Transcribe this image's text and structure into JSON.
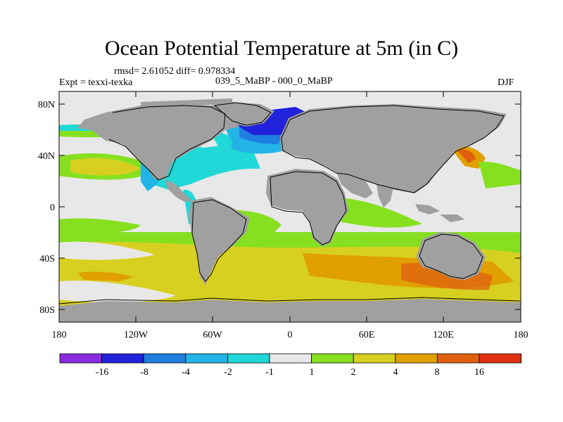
{
  "title": "Ocean Potential Temperature at 5m (in C)",
  "stats_line": "rmsd= 2.61052 diff= 0.978334",
  "experiment": "Expt = texxi-texka",
  "comparison": "039_5_MaBP - 000_0_MaBP",
  "season": "DJF",
  "lat_ticks": [
    "80N",
    "40N",
    "0",
    "40S",
    "80S"
  ],
  "lon_ticks": [
    "180",
    "120W",
    "60W",
    "0",
    "60E",
    "120E",
    "180"
  ],
  "colorbar": {
    "labels": [
      "-16",
      "-8",
      "-4",
      "-2",
      "-1",
      "1",
      "2",
      "4",
      "8",
      "16"
    ],
    "colors": [
      "#8a2be2",
      "#2222dd",
      "#1e7fe0",
      "#22b4e6",
      "#20d8d8",
      "#e8e8e8",
      "#86e020",
      "#d8d020",
      "#e0a000",
      "#e06010",
      "#e03010"
    ]
  },
  "land_color": "#a0a0a0"
}
